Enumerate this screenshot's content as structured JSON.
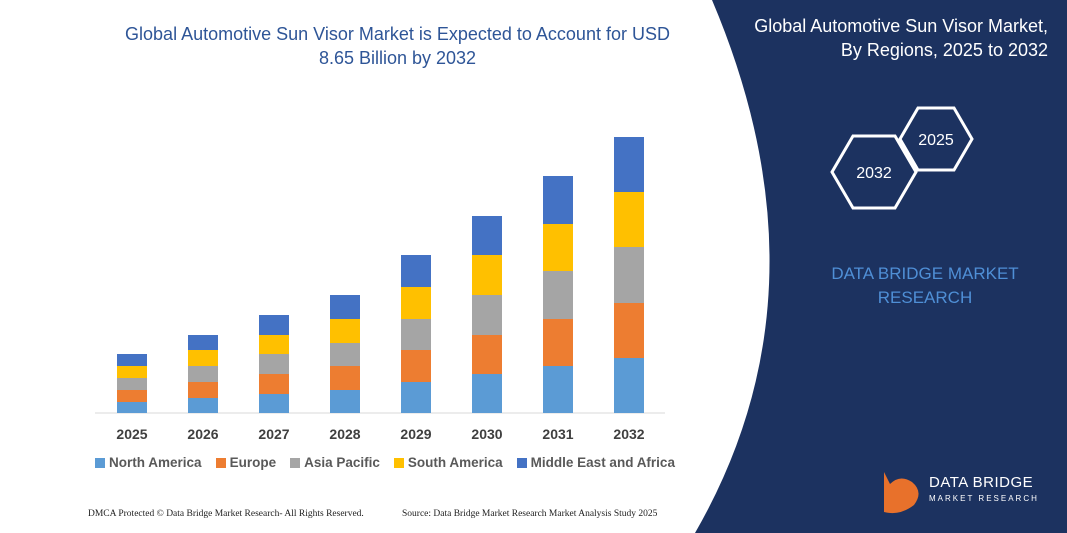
{
  "chart_data": {
    "type": "stacked-bar",
    "title": "Global Automotive Sun Visor Market is Expected to Account for USD 8.65 Billion by 2032",
    "categories": [
      "2025",
      "2026",
      "2027",
      "2028",
      "2029",
      "2030",
      "2031",
      "2032"
    ],
    "series": [
      {
        "name": "North America",
        "color": "#5b9bd5",
        "values": [
          11,
          15,
          19,
          23,
          31,
          39,
          47,
          55
        ]
      },
      {
        "name": "Europe",
        "color": "#ed7d31",
        "values": [
          12,
          16,
          20,
          24,
          32,
          39,
          47,
          55
        ]
      },
      {
        "name": "Asia Pacific",
        "color": "#a5a5a5",
        "values": [
          12,
          16,
          20,
          23,
          31,
          40,
          48,
          56
        ]
      },
      {
        "name": "South America",
        "color": "#ffc000",
        "values": [
          12,
          16,
          19,
          24,
          32,
          40,
          47,
          55
        ]
      },
      {
        "name": "Middle East and Africa",
        "color": "#4472c4",
        "values": [
          12,
          15,
          20,
          24,
          32,
          39,
          48,
          55
        ]
      }
    ]
  },
  "panel": {
    "title": "Global Automotive Sun Visor Market, By Regions, 2025 to 2032",
    "hexagons": [
      "2025",
      "2032"
    ],
    "brand": "DATA BRIDGE MARKET RESEARCH"
  },
  "footer": {
    "left": "DMCA Protected © Data Bridge Market Research- All Rights Reserved.",
    "right": "Source: Data Bridge Market Research Market Analysis Study 2025"
  },
  "logo": {
    "name": "DATA BRIDGE",
    "tagline": "MARKET RESEARCH"
  }
}
